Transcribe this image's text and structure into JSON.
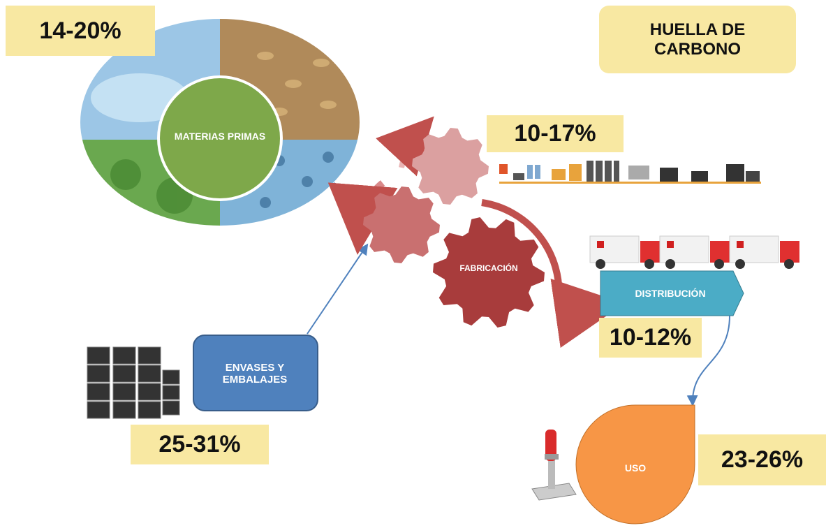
{
  "title": "HUELLA DE CARBONO",
  "stages": [
    {
      "label": "MATERIAS PRIMAS",
      "share": "14-20%"
    },
    {
      "label": "FABRICACIÓN",
      "share": "10-17%"
    },
    {
      "label": "DISTRIBUCIÓN",
      "share": "10-12%"
    },
    {
      "label": "ENVASES Y EMBALAJES",
      "share": "25-31%"
    },
    {
      "label": "USO",
      "share": "23-26%"
    }
  ]
}
